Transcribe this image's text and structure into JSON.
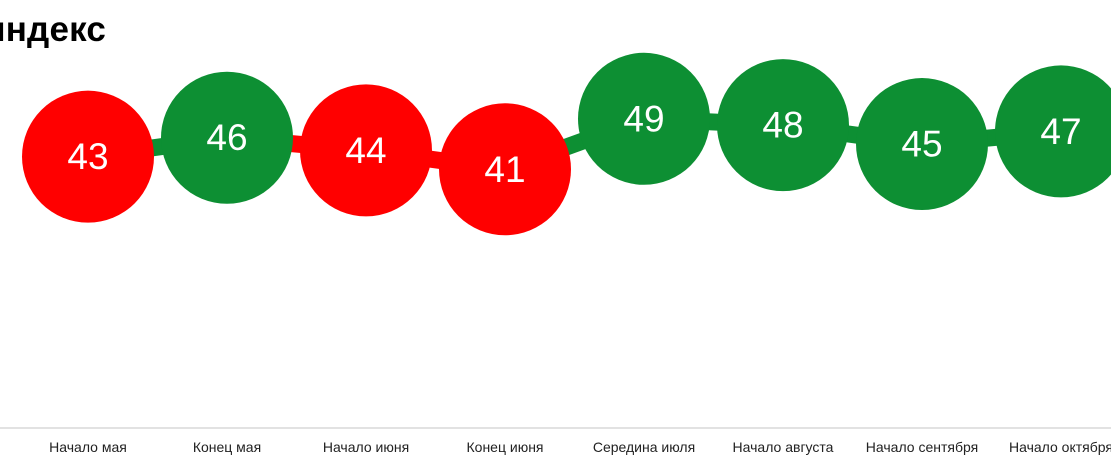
{
  "chart_data": {
    "type": "line",
    "title": "индекс",
    "categories": [
      "Начало мая",
      "Конец мая",
      "Начало июня",
      "Конец июня",
      "Середина июля",
      "Начало августа",
      "Начало сентября",
      "Начало октября"
    ],
    "values": [
      43,
      46,
      44,
      41,
      49,
      48,
      45,
      47
    ],
    "value_labels": [
      "43",
      "46",
      "44",
      "41",
      "49",
      "48",
      "45",
      "47"
    ],
    "point_colors": [
      "#ff0000",
      "#0d8f33",
      "#ff0000",
      "#ff0000",
      "#0d8f33",
      "#0d8f33",
      "#0d8f33",
      "#0d8f33"
    ],
    "segment_colors": [
      "#0d8f33",
      "#ff0000",
      "#ff0000",
      "#0d8f33",
      "#0d8f33",
      "#0d8f33",
      "#0d8f33"
    ],
    "ylim": [
      0,
      60
    ],
    "grid": false,
    "legend": "none",
    "xlabel": "",
    "ylabel": ""
  }
}
